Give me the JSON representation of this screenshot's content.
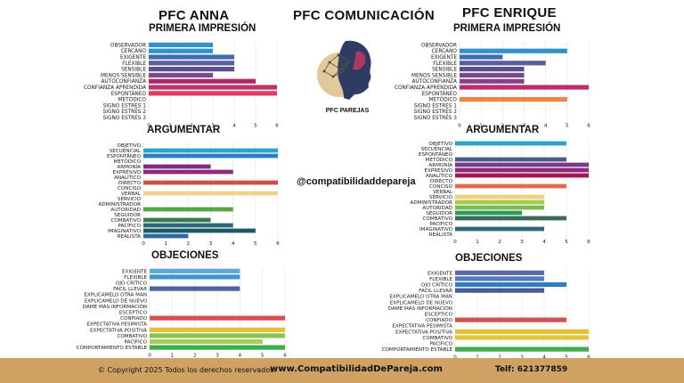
{
  "header": {
    "left_title": "PFC ANNA",
    "center_title": "PFC COMUNICACIÓN",
    "right_title": "PFC ENRIQUE"
  },
  "center": {
    "logo_caption": "PFC PAREJAS",
    "handle": "@compatibilidaddepareja"
  },
  "footer": {
    "copyright": "© Copyright 2025 Todos los derechos reservados.",
    "website": "www.CompatibilidadDePareja.com",
    "phone": "Telf: 621377859"
  },
  "colors": {
    "footer_bg": "#cfa263",
    "logo_circle": "#e2c89a",
    "logo_face": "#2f3b63"
  },
  "chart_data": [
    {
      "id": "anna-primera",
      "type": "bar",
      "orientation": "horizontal",
      "title": "PRIMERA IMPRESIÓN",
      "categories": [
        "OBSERVADOR",
        "CERCANO",
        "EXIGENTE",
        "FLEXIBLE",
        "SENSIBLE",
        "MENOS SENSIBLE",
        "AUTOCONFIANZA",
        "CONFIANZA APRENDIDA",
        "ESPONTÁNEO",
        "METÓDICO",
        "SIGNO ESTRÉS 1",
        "SIGNO ESTRÉS 2",
        "SIGNO ESTRÉS 3"
      ],
      "values": [
        3,
        3,
        4,
        4,
        4,
        3,
        5,
        6,
        6,
        0,
        0,
        0,
        0
      ],
      "colors": [
        "#2f93c9",
        "#2f93c9",
        "#3d6db0",
        "#5a5f9c",
        "#5c4f8f",
        "#7b4a8c",
        "#b2246a",
        "#c83262",
        "#e23c63",
        "#999",
        "#999",
        "#999",
        "#999"
      ],
      "xlim": [
        0,
        6
      ],
      "xticks": [
        0,
        1,
        2,
        3,
        4,
        5,
        6
      ]
    },
    {
      "id": "anna-argumentar",
      "type": "bar",
      "orientation": "horizontal",
      "title": "ARGUMENTAR",
      "categories": [
        "OBJETIVO",
        "SECUENCIAL",
        "ESPONTÁNEO",
        "METÓDICO",
        "ARMONÍA",
        "EXPRESIVO",
        "ANALÍTICO",
        "DIRECTO",
        "CONCISO",
        "VERBAL",
        "SERVICIO",
        "ADMINISTRADOR",
        "AUTORIDAD",
        "SEGUIDOR",
        "COMBATIVO",
        "PACÍFICO",
        "IMAGINATIVO",
        "REALISTA"
      ],
      "values": [
        0,
        6,
        6,
        0,
        3,
        4,
        0,
        6,
        0,
        6,
        0,
        0,
        4,
        0,
        3,
        4,
        5,
        2
      ],
      "colors": [
        "#999",
        "#2aa3cf",
        "#2f7fbf",
        "#999",
        "#7b2f84",
        "#8e2a7d",
        "#999",
        "#c8524a",
        "#999",
        "#f0d38a",
        "#999",
        "#999",
        "#55a842",
        "#999",
        "#3b7a4a",
        "#2c6a77",
        "#1c5a6a",
        "#2c6aa0"
      ],
      "xlim": [
        0,
        6
      ],
      "xticks": [
        0,
        1,
        2,
        3,
        4,
        5,
        6
      ]
    },
    {
      "id": "anna-objeciones",
      "type": "bar",
      "orientation": "horizontal",
      "title": "OBJECIONES",
      "categories": [
        "EXIGENTE",
        "FLEXIBLE",
        "OJO CRÍTICO",
        "FACIL LLEVAR",
        "EXPLICAMELO OTRA MAN",
        "EXPLICAMELO DE NUEVO",
        "DAME MÁS INFORMACIÓN",
        "ESCEPTICO",
        "CONFIADO",
        "EXPECTATIVA PESIMISTA",
        "EXPECTATIVA POSITIVA",
        "COMBATIVO",
        "PACÍFICO",
        "COMPORTAMIENTO ESTABLE"
      ],
      "values": [
        4,
        4,
        0,
        4,
        0,
        0,
        0,
        0,
        6,
        0,
        6,
        6,
        5,
        6
      ],
      "colors": [
        "#5aa9d6",
        "#3f95c9",
        "#999",
        "#50639e",
        "#999",
        "#999",
        "#999",
        "#999",
        "#d6504f",
        "#999",
        "#e9bd35",
        "#8cc04f",
        "#a8cc5a",
        "#3fae4a"
      ],
      "xlim": [
        0,
        6
      ],
      "xticks": [
        0,
        1,
        2,
        3,
        4,
        5,
        6
      ]
    },
    {
      "id": "enrique-primera",
      "type": "bar",
      "orientation": "horizontal",
      "title": "PRIMERA IMPRESIÓN",
      "categories": [
        "OBSERVADOR",
        "CERCANO",
        "EXIGENTE",
        "FLEXIBLE",
        "SENSIBLE",
        "MENOS SENSIBLE",
        "AUTOCONFIANZA",
        "CONFIANZA APRENDIDA",
        "ESPONTÁNEO",
        "METÓDICO",
        "SIGNO ESTRÉS 1",
        "SIGNO ESTRÉS 2",
        "SIGNO ESTRÉS 3"
      ],
      "values": [
        0,
        5,
        2,
        4,
        3,
        3,
        3,
        6,
        0,
        5,
        0,
        0,
        0
      ],
      "colors": [
        "#999",
        "#2f93c9",
        "#3d6db0",
        "#5a5f9c",
        "#5c4f8f",
        "#7b4a8c",
        "#8a3f85",
        "#c02a69",
        "#999",
        "#f0824a",
        "#999",
        "#999",
        "#999"
      ],
      "xlim": [
        0,
        6
      ],
      "xticks": [
        0,
        1,
        2,
        3,
        4,
        5,
        6
      ]
    },
    {
      "id": "enrique-argumentar",
      "type": "bar",
      "orientation": "horizontal",
      "title": "ARGUMENTAR",
      "categories": [
        "OBJETIVO",
        "SECUENCIAL",
        "ESPONTÁNEO",
        "METÓDICO",
        "ARMONÍA",
        "EXPRESIVO",
        "ANALÍTICO",
        "DIRECTO",
        "CONCISO",
        "VERBAL",
        "SERVICIO",
        "ADMINISTRADOR",
        "AUTORIDAD",
        "SEGUIDOR",
        "COMBATIVO",
        "PACÍFICO",
        "IMAGINATIVO",
        "REALISTA"
      ],
      "values": [
        5,
        0,
        0,
        5,
        6,
        6,
        6,
        0,
        5,
        0,
        4,
        4,
        4,
        3,
        5,
        0,
        4,
        0
      ],
      "colors": [
        "#2aa3cf",
        "#999",
        "#999",
        "#4a5a8a",
        "#7b3a88",
        "#8e2a7d",
        "#a3184f",
        "#999",
        "#e36c4a",
        "#999",
        "#efd37a",
        "#a8c94a",
        "#7cba52",
        "#2f9a5a",
        "#3a6a5a",
        "#999",
        "#2c6a77",
        "#999"
      ],
      "xlim": [
        0,
        6
      ],
      "xticks": [
        0,
        1,
        2,
        3,
        4,
        5,
        6
      ]
    },
    {
      "id": "enrique-objeciones",
      "type": "bar",
      "orientation": "horizontal",
      "title": "OBJECIONES",
      "categories": [
        "EXIGENTE",
        "FLEXIBLE",
        "OJO CRÍTICO",
        "FACIL LLEVAR",
        "EXPLICAMELO OTRA MAN",
        "EXPLICAMELO DE NUEVO",
        "DAME MÁS INFORMACIÓN",
        "ESCEPTICO",
        "CONFIADO",
        "EXPECTATIVA PESIMISTA",
        "EXPECTATIVA POSITIVA",
        "COMBATIVO",
        "PACÍFICO",
        "COMPORTAMIENTO ESTABLE"
      ],
      "values": [
        4,
        4,
        5,
        4,
        0,
        0,
        0,
        0,
        5,
        0,
        6,
        6,
        0,
        6
      ],
      "colors": [
        "#5a6aa8",
        "#5a7ab8",
        "#2f7fc0",
        "#4a5a90",
        "#999",
        "#999",
        "#999",
        "#999",
        "#d6504f",
        "#999",
        "#e9bd35",
        "#e9c43a",
        "#999",
        "#3fae4a"
      ],
      "xlim": [
        0,
        6
      ],
      "xticks": [
        0,
        1,
        2,
        3,
        4,
        5,
        6
      ]
    }
  ]
}
